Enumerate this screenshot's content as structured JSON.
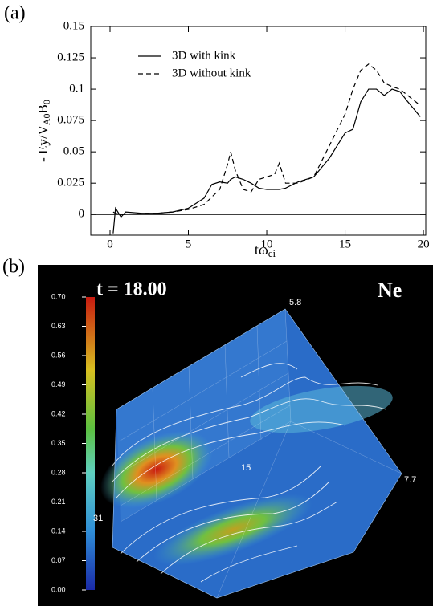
{
  "chart_data": [
    {
      "type": "line",
      "panel": "(a)",
      "ylabel": [
        "- Ey/V",
        "A0",
        "B",
        "0"
      ],
      "xlabel": [
        "tω",
        "ci"
      ],
      "x": [
        0.2,
        0.35,
        0.7,
        1,
        2,
        3,
        4,
        5,
        6,
        6.5,
        7,
        7.5,
        7.7,
        8,
        8.5,
        9,
        9.5,
        10,
        10.5,
        10.8,
        11.2,
        12,
        13,
        14,
        15,
        15.5,
        16,
        16.5,
        17,
        17.5,
        18,
        18.5,
        19,
        19.8
      ],
      "series": [
        {
          "name": "3D with kink",
          "color": "#000000",
          "style": "solid",
          "values": [
            -0.015,
            0.005,
            -0.002,
            0.002,
            0.001,
            0.001,
            0.002,
            0.005,
            0.013,
            0.024,
            0.026,
            0.025,
            0.028,
            0.03,
            0.028,
            0.025,
            0.021,
            0.02,
            0.02,
            0.02,
            0.021,
            0.026,
            0.03,
            0.045,
            0.065,
            0.068,
            0.09,
            0.1,
            0.1,
            0.095,
            0.1,
            0.098,
            0.09,
            0.078
          ]
        },
        {
          "name": "3D without kink",
          "color": "#000000",
          "style": "dashed",
          "values": [
            0.002,
            0.001,
            0,
            0,
            0.001,
            0.001,
            0.002,
            0.004,
            0.008,
            0.014,
            0.02,
            0.04,
            0.05,
            0.035,
            0.02,
            0.018,
            0.028,
            0.03,
            0.032,
            0.041,
            0.025,
            0.025,
            0.03,
            0.055,
            0.08,
            0.1,
            0.115,
            0.12,
            0.115,
            0.105,
            0.102,
            0.1,
            0.095,
            0.087
          ]
        }
      ],
      "xlim": [
        -1.23,
        20.15
      ],
      "xticks": [
        0,
        5,
        10,
        15,
        20
      ],
      "ylim": [
        -0.0165,
        0.15
      ],
      "yticks": [
        0,
        0.025,
        0.05,
        0.075,
        0.1,
        0.125,
        0.15
      ],
      "zero_line": true,
      "legend": "upper-left"
    },
    {
      "type": "render3d",
      "panel": "(b)",
      "title": "t = 18.00",
      "annotation": "Ne",
      "axis_labels": [
        "5.8",
        "7.7",
        "31",
        "15"
      ],
      "colorbar": {
        "lim": [
          0,
          0.7
        ],
        "ticks": [
          {
            "value": 0,
            "label": "0.00"
          },
          0.07,
          0.14,
          0.21,
          0.28,
          0.35,
          0.42,
          0.49,
          0.56,
          0.63,
          {
            "value": 0.7,
            "label": "0.70"
          }
        ]
      }
    }
  ]
}
